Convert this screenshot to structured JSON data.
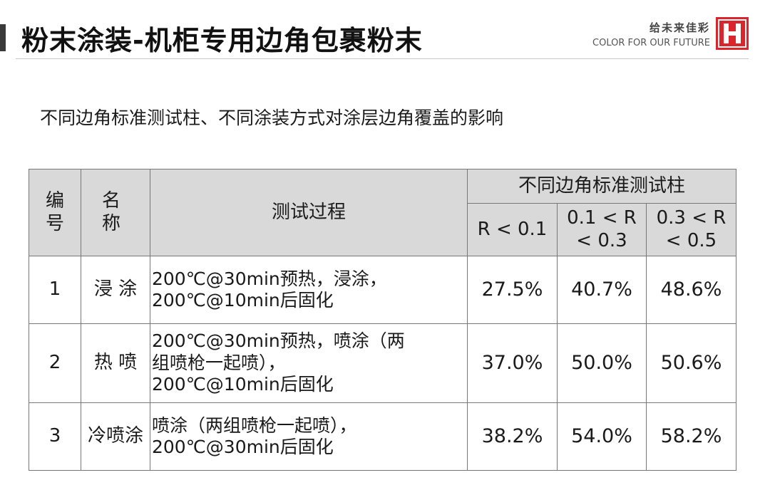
{
  "header": {
    "title": "粉末涂装-机柜专用边角包裹粉末",
    "brand_cn": "给未来佳彩",
    "brand_en": "COLOR FOR OUR FUTURE",
    "logo_icon": "letter-h-logo-icon",
    "logo_color": "#d9252b"
  },
  "subtitle": "不同边角标准测试柱、不同涂装方式对涂层边角覆盖的影响",
  "table": {
    "headers": {
      "no": "编号",
      "name": "名 称",
      "process": "测试过程",
      "group": "不同边角标准测试柱",
      "sub": [
        "R < 0.1",
        "0.1 < R < 0.3",
        "0.3 < R < 0.5"
      ]
    },
    "rows": [
      {
        "no": "1",
        "name": "浸 涂",
        "process_lines": [
          "200℃@30min预热，浸涂，",
          "200℃@10min后固化"
        ],
        "values": [
          "27.5%",
          "40.7%",
          "48.6%"
        ]
      },
      {
        "no": "2",
        "name": "热 喷",
        "process_lines": [
          "200℃@30min预热，喷涂（两",
          "组喷枪一起喷），",
          "200℃@10min后固化"
        ],
        "values": [
          "37.0%",
          "50.0%",
          "50.6%"
        ]
      },
      {
        "no": "3",
        "name": "冷喷涂",
        "process_lines": [
          "喷涂（两组喷枪一起喷），",
          "200℃@30min后固化"
        ],
        "values": [
          "38.2%",
          "54.0%",
          "58.2%"
        ]
      }
    ]
  }
}
